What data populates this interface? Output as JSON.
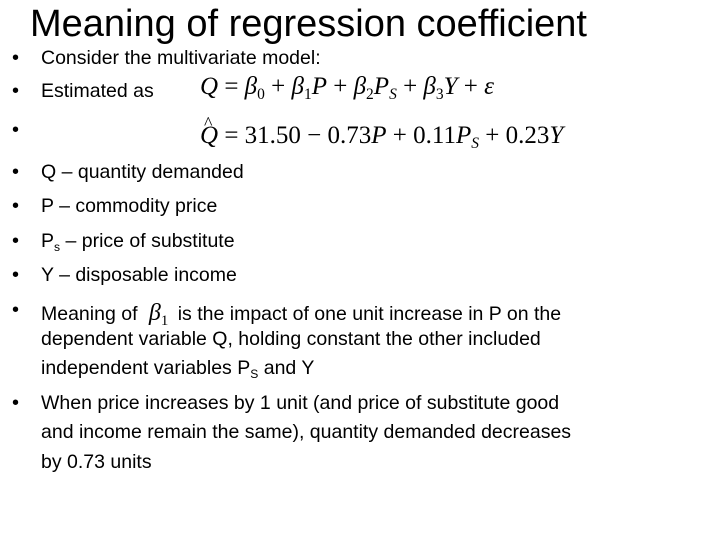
{
  "slide": {
    "title": "Meaning of regression coefficient",
    "bullets": {
      "b1": "Consider the multivariate model:",
      "b2": "Estimated as",
      "b4": "Q – quantity demanded",
      "b5": "P – commodity price",
      "b6_main": "P",
      "b6_sub": "s",
      "b6_rest": " – price of substitute",
      "b7": "Y – disposable income",
      "b8_pre": "Meaning of",
      "b8_post": "is the impact of one unit increase in P on the",
      "b8_line2": "dependent variable Q, holding constant the other included",
      "b8_line3_pre": "independent variables P",
      "b8_line3_sub": "S",
      "b8_line3_post": "  and Y",
      "b9_line1": "When price increases by 1 unit (and price of substitute good",
      "b9_line2": "and income remain the same), quantity demanded decreases",
      "b9_line3": "by 0.73 units"
    },
    "model_equation": {
      "lhs": "Q",
      "eq": " = ",
      "b0": "β",
      "b0_sub": "0",
      "plus1": " + ",
      "b1": "β",
      "b1_sub": "1",
      "p": "P",
      "plus2": " + ",
      "b2": "β",
      "b2_sub": "2",
      "ps": "P",
      "ps_sub": "S",
      "plus3": " + ",
      "b3": "β",
      "b3_sub": "3",
      "y": "Y",
      "plus4": " + ",
      "eps": "ε"
    },
    "estimated_equation": {
      "lhs": "Q",
      "hat": "^",
      "rhs1": " = 31.50 − 0.73",
      "p": "P",
      "rhs2": " + 0.11",
      "ps": "P",
      "ps_sub": "S",
      "rhs3": " + 0.23",
      "y": "Y"
    },
    "inline_beta": {
      "symbol": "β",
      "sub": "1"
    }
  }
}
